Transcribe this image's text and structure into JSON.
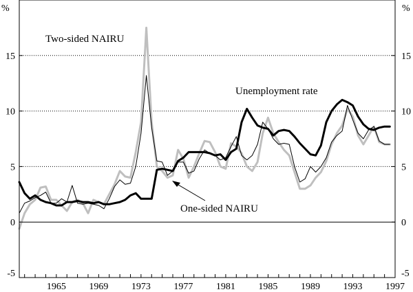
{
  "chart_data": {
    "type": "line",
    "unit_left": "%",
    "unit_right": "%",
    "ylim": [
      -5,
      20
    ],
    "yticks": [
      -5,
      0,
      5,
      10,
      15
    ],
    "xlim": [
      1961.5,
      1997
    ],
    "xticks": [
      1965,
      1969,
      1973,
      1977,
      1981,
      1985,
      1989,
      1993,
      1997
    ],
    "gridlines": [
      5,
      10,
      15
    ],
    "grid_style": "dotted",
    "series": [
      {
        "name": "Unemployment rate",
        "color": "#000000",
        "x": [
          1961.5,
          1962,
          1962.5,
          1963,
          1963.5,
          1964,
          1964.5,
          1965,
          1965.5,
          1966,
          1966.5,
          1967,
          1967.5,
          1968,
          1968.5,
          1969,
          1969.5,
          1970,
          1970.5,
          1971,
          1971.5,
          1972,
          1972.5,
          1973,
          1973.5,
          1974,
          1974.5,
          1975,
          1975.5,
          1976,
          1976.5,
          1977,
          1977.5,
          1978,
          1978.5,
          1979,
          1979.5,
          1980,
          1980.5,
          1981,
          1981.5,
          1982,
          1982.5,
          1983,
          1983.5,
          1984,
          1984.5,
          1985,
          1985.5,
          1986,
          1986.5,
          1987,
          1987.5,
          1988,
          1988.5,
          1989,
          1989.5,
          1990,
          1990.5,
          1991,
          1991.5,
          1992,
          1992.5,
          1993,
          1993.5,
          1994,
          1994.5,
          1995,
          1995.5,
          1996,
          1996.5
        ],
        "values": [
          3.6,
          2.6,
          2.1,
          2.4,
          2.0,
          1.8,
          1.7,
          1.5,
          1.5,
          1.8,
          1.8,
          1.9,
          1.8,
          1.8,
          1.7,
          1.8,
          1.6,
          1.6,
          1.7,
          1.8,
          2.0,
          2.4,
          2.6,
          2.1,
          2.1,
          2.1,
          4.7,
          4.8,
          4.7,
          4.6,
          5.5,
          5.8,
          6.3,
          6.3,
          6.3,
          6.3,
          6.2,
          6.0,
          6.1,
          5.6,
          6.3,
          6.6,
          9.0,
          10.2,
          9.4,
          8.7,
          8.5,
          8.4,
          7.8,
          8.2,
          8.3,
          8.2,
          7.7,
          7.1,
          6.6,
          6.1,
          6.0,
          6.9,
          9.0,
          10.0,
          10.6,
          11.0,
          10.8,
          10.5,
          9.5,
          8.8,
          8.4,
          8.3,
          8.5,
          8.6,
          8.6
        ],
        "style": "thick"
      },
      {
        "name": "Two-sided NAIRU",
        "color": "#bfbfbf",
        "x": [
          1961.5,
          1962,
          1962.5,
          1963,
          1963.5,
          1964,
          1964.5,
          1965,
          1965.5,
          1966,
          1966.5,
          1967,
          1967.5,
          1968,
          1968.5,
          1969,
          1969.5,
          1970,
          1970.5,
          1971,
          1971.5,
          1972,
          1972.5,
          1973,
          1973.5,
          1974,
          1974.5,
          1975,
          1975.5,
          1976,
          1976.5,
          1977,
          1977.5,
          1978,
          1978.5,
          1979,
          1979.5,
          1980,
          1980.5,
          1981,
          1981.5,
          1982,
          1982.5,
          1983,
          1983.5,
          1984,
          1984.5,
          1985,
          1985.5,
          1986,
          1986.5,
          1987,
          1987.5,
          1988,
          1988.5,
          1989,
          1989.5,
          1990,
          1990.5,
          1991,
          1991.5,
          1992,
          1992.5,
          1993,
          1993.5,
          1994,
          1994.5,
          1995,
          1995.5,
          1996,
          1996.5
        ],
        "values": [
          -0.6,
          0.8,
          1.6,
          2.0,
          3.1,
          3.2,
          2.0,
          2.0,
          1.5,
          1.0,
          1.8,
          2.0,
          1.7,
          0.8,
          2.0,
          1.8,
          1.6,
          2.5,
          3.4,
          4.6,
          4.1,
          4.0,
          6.3,
          9.0,
          17.5,
          9.0,
          5.0,
          4.6,
          4.0,
          4.2,
          6.5,
          5.7,
          4.0,
          5.0,
          6.2,
          7.3,
          7.2,
          6.3,
          5.0,
          4.8,
          7.1,
          6.8,
          6.2,
          5.0,
          4.6,
          5.4,
          8.0,
          9.4,
          8.0,
          7.2,
          6.5,
          6.0,
          4.5,
          3.0,
          3.0,
          3.3,
          4.0,
          4.5,
          5.5,
          7.0,
          8.0,
          8.7,
          10.2,
          9.5,
          7.8,
          7.0,
          7.8,
          8.6,
          7.2,
          7.0,
          7.0
        ],
        "style": "thick-light"
      },
      {
        "name": "One-sided NAIRU",
        "color": "#000000",
        "x": [
          1961.5,
          1962,
          1962.5,
          1963,
          1963.5,
          1964,
          1964.5,
          1965,
          1965.5,
          1966,
          1966.5,
          1967,
          1967.5,
          1968,
          1968.5,
          1969,
          1969.5,
          1970,
          1970.5,
          1971,
          1971.5,
          1972,
          1972.5,
          1973,
          1973.5,
          1974,
          1974.5,
          1975,
          1975.5,
          1976,
          1976.5,
          1977,
          1977.5,
          1978,
          1978.5,
          1979,
          1979.5,
          1980,
          1980.5,
          1981,
          1981.5,
          1982,
          1982.5,
          1983,
          1983.5,
          1984,
          1984.5,
          1985,
          1985.5,
          1986,
          1986.5,
          1987,
          1987.5,
          1988,
          1988.5,
          1989,
          1989.5,
          1990,
          1990.5,
          1991,
          1991.5,
          1992,
          1992.5,
          1993,
          1993.5,
          1994,
          1994.5,
          1995,
          1995.5,
          1996,
          1996.5
        ],
        "values": [
          0.8,
          1.7,
          1.9,
          2.2,
          2.4,
          2.7,
          1.7,
          1.7,
          2.1,
          1.8,
          3.3,
          1.7,
          1.6,
          1.7,
          1.6,
          1.5,
          1.2,
          2.1,
          3.2,
          3.8,
          3.4,
          3.5,
          5.0,
          8.0,
          13.2,
          8.5,
          5.5,
          5.4,
          4.2,
          4.6,
          5.4,
          5.4,
          4.4,
          4.6,
          5.7,
          6.5,
          6.2,
          6.0,
          5.6,
          5.8,
          6.8,
          7.7,
          6.0,
          5.6,
          6.0,
          7.0,
          9.0,
          8.4,
          7.5,
          7.0,
          7.1,
          7.0,
          5.0,
          3.6,
          3.9,
          5.0,
          4.5,
          5.0,
          5.8,
          7.2,
          7.8,
          8.2,
          10.5,
          9.2,
          8.0,
          7.5,
          8.3,
          8.6,
          7.3,
          7.0,
          7.0
        ],
        "style": "thin"
      }
    ],
    "annotations": [
      {
        "text": "Two-sided NAIRU",
        "series": "Two-sided NAIRU"
      },
      {
        "text": "Unemployment rate",
        "series": "Unemployment rate"
      },
      {
        "text": "One-sided NAIRU",
        "series": "One-sided NAIRU",
        "arrow": true
      }
    ]
  }
}
